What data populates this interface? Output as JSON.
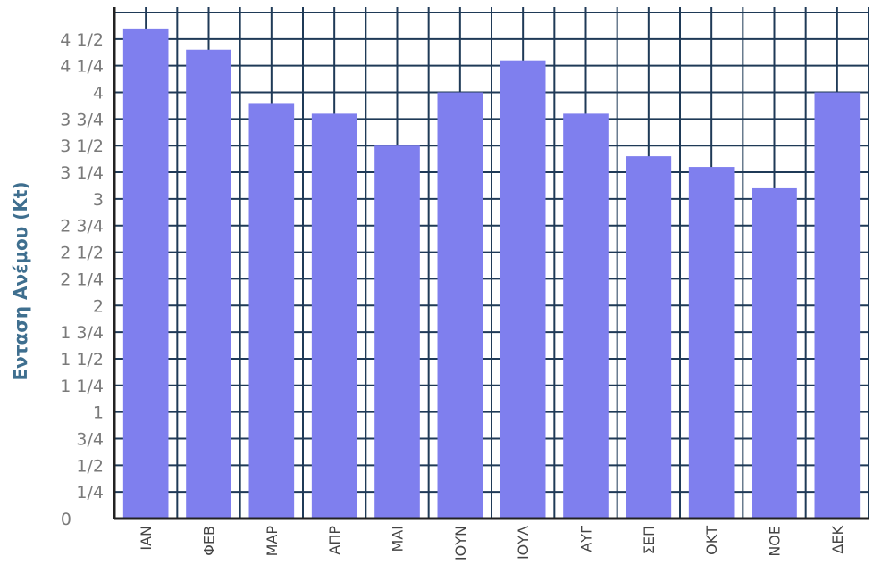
{
  "chart_data": {
    "type": "bar",
    "title": "",
    "xlabel": "",
    "ylabel": "Ενταση Ανέμου (Kt)",
    "categories": [
      "ΙΑΝ",
      "ΦΕΒ",
      "ΜΑΡ",
      "ΑΠΡ",
      "ΜΑΙ",
      "ΙΟΥΝ",
      "ΙΟΥΛ",
      "ΑΥΓ",
      "ΣΕΠ",
      "ΟΚΤ",
      "ΝΟΕ",
      "ΔΕΚ"
    ],
    "values": [
      4.6,
      4.4,
      3.9,
      3.8,
      3.5,
      4.0,
      4.3,
      3.8,
      3.4,
      3.3,
      3.1,
      4.0
    ],
    "ylim": [
      0,
      4.8
    ],
    "yticks": [
      {
        "value": 0,
        "label": "0"
      },
      {
        "value": 0.25,
        "label": "1/4"
      },
      {
        "value": 0.5,
        "label": "1/2"
      },
      {
        "value": 0.75,
        "label": "3/4"
      },
      {
        "value": 1,
        "label": "1"
      },
      {
        "value": 1.25,
        "label": "1 1/4"
      },
      {
        "value": 1.5,
        "label": "1 1/2"
      },
      {
        "value": 1.75,
        "label": "1 3/4"
      },
      {
        "value": 2,
        "label": "2"
      },
      {
        "value": 2.25,
        "label": "2 1/4"
      },
      {
        "value": 2.5,
        "label": "2 1/2"
      },
      {
        "value": 2.75,
        "label": "2 3/4"
      },
      {
        "value": 3,
        "label": "3"
      },
      {
        "value": 3.25,
        "label": "3 1/4"
      },
      {
        "value": 3.5,
        "label": "3 1/2"
      },
      {
        "value": 3.75,
        "label": "3 3/4"
      },
      {
        "value": 4,
        "label": "4"
      },
      {
        "value": 4.25,
        "label": "4 1/4"
      },
      {
        "value": 4.5,
        "label": "4 1/2"
      }
    ],
    "grid": true,
    "legend": "none",
    "colors": {
      "bar": "#7f7fee",
      "grid": "#1f3a57",
      "axis": "#222222"
    }
  }
}
